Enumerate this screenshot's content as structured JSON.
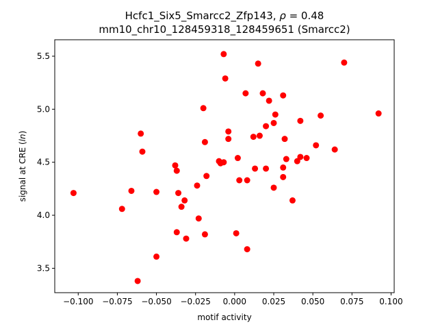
{
  "chart_data": {
    "type": "scatter",
    "title_line1_prefix": "Hcfc1_Six5_Smarcc2_Zfp143, ",
    "title_rho_symbol": "ρ",
    "title_line1_suffix": " = 0.48",
    "title_line2": "mm10_chr10_128459318_128459651 (Smarcc2)",
    "xlabel": "motif activity",
    "ylabel_prefix": "signal at CRE (",
    "ylabel_italic": "ln",
    "ylabel_suffix": ")",
    "xlim": [
      -0.115,
      0.102
    ],
    "ylim": [
      3.27,
      5.655
    ],
    "xticks": [
      -0.1,
      -0.075,
      -0.05,
      -0.025,
      0.0,
      0.025,
      0.05,
      0.075,
      0.1
    ],
    "xtick_labels": [
      "−0.100",
      "−0.075",
      "−0.050",
      "−0.025",
      "0.000",
      "0.025",
      "0.050",
      "0.075",
      "0.100"
    ],
    "yticks": [
      3.5,
      4.0,
      4.5,
      5.0,
      5.5
    ],
    "ytick_labels": [
      "3.5",
      "4.0",
      "4.5",
      "5.0",
      "5.5"
    ],
    "grid": false,
    "marker_color": "#ff0000",
    "points": [
      [
        -0.103,
        4.21
      ],
      [
        -0.072,
        4.06
      ],
      [
        -0.066,
        4.23
      ],
      [
        -0.062,
        3.38
      ],
      [
        -0.06,
        4.77
      ],
      [
        -0.059,
        4.6
      ],
      [
        -0.05,
        4.22
      ],
      [
        -0.05,
        3.61
      ],
      [
        -0.038,
        4.47
      ],
      [
        -0.037,
        4.42
      ],
      [
        -0.037,
        3.84
      ],
      [
        -0.036,
        4.21
      ],
      [
        -0.034,
        4.08
      ],
      [
        -0.032,
        4.14
      ],
      [
        -0.031,
        3.78
      ],
      [
        -0.024,
        4.28
      ],
      [
        -0.023,
        3.97
      ],
      [
        -0.02,
        5.01
      ],
      [
        -0.019,
        4.69
      ],
      [
        -0.019,
        3.82
      ],
      [
        -0.018,
        4.37
      ],
      [
        -0.01,
        4.51
      ],
      [
        -0.009,
        4.49
      ],
      [
        -0.007,
        5.52
      ],
      [
        -0.007,
        4.5
      ],
      [
        -0.006,
        5.29
      ],
      [
        -0.004,
        4.79
      ],
      [
        -0.004,
        4.72
      ],
      [
        0.001,
        3.83
      ],
      [
        0.002,
        4.54
      ],
      [
        0.003,
        4.33
      ],
      [
        0.007,
        5.15
      ],
      [
        0.008,
        4.33
      ],
      [
        0.008,
        3.68
      ],
      [
        0.012,
        4.74
      ],
      [
        0.013,
        4.44
      ],
      [
        0.015,
        5.43
      ],
      [
        0.016,
        4.75
      ],
      [
        0.018,
        5.15
      ],
      [
        0.02,
        4.44
      ],
      [
        0.02,
        4.84
      ],
      [
        0.022,
        5.08
      ],
      [
        0.025,
        4.87
      ],
      [
        0.025,
        4.26
      ],
      [
        0.026,
        4.95
      ],
      [
        0.031,
        5.13
      ],
      [
        0.031,
        4.45
      ],
      [
        0.031,
        4.36
      ],
      [
        0.032,
        4.72
      ],
      [
        0.033,
        4.53
      ],
      [
        0.037,
        4.14
      ],
      [
        0.04,
        4.51
      ],
      [
        0.042,
        4.89
      ],
      [
        0.042,
        4.55
      ],
      [
        0.046,
        4.54
      ],
      [
        0.052,
        4.66
      ],
      [
        0.055,
        4.94
      ],
      [
        0.064,
        4.62
      ],
      [
        0.07,
        5.44
      ],
      [
        0.092,
        4.96
      ]
    ]
  }
}
